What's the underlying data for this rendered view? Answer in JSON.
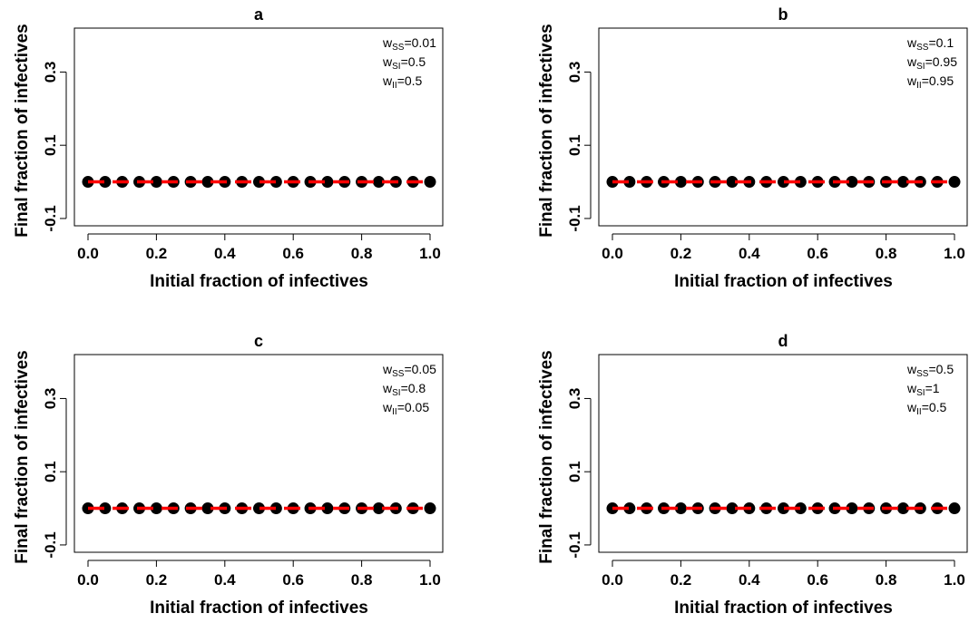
{
  "colors": {
    "points": "#000000",
    "line": "#ff0000",
    "axes": "#000000"
  },
  "chart_data": [
    {
      "type": "scatter",
      "title": "a",
      "xlabel": "Initial fraction of infectives",
      "ylabel": "Final fraction of infectives",
      "xlim": [
        0.0,
        1.0
      ],
      "ylim": [
        -0.12,
        0.42
      ],
      "xticks": [
        "0.0",
        "0.2",
        "0.4",
        "0.6",
        "0.8",
        "1.0"
      ],
      "yticks": [
        "-0.1",
        "0.1",
        "0.3"
      ],
      "legend_position": "top-right",
      "params": [
        {
          "w": "w",
          "sub": "SS",
          "value": "=0.01"
        },
        {
          "w": "w",
          "sub": "SI",
          "value": "=0.5"
        },
        {
          "w": "w",
          "sub": "II",
          "value": "=0.5"
        }
      ],
      "series": [
        {
          "type": "points",
          "x": [
            0.0,
            0.05,
            0.1,
            0.15,
            0.2,
            0.25,
            0.3,
            0.35,
            0.4,
            0.45,
            0.5,
            0.55,
            0.6,
            0.65,
            0.7,
            0.75,
            0.8,
            0.85,
            0.9,
            0.95,
            1.0
          ],
          "y": [
            0,
            0,
            0,
            0,
            0,
            0,
            0,
            0,
            0,
            0,
            0,
            0,
            0,
            0,
            0,
            0,
            0,
            0,
            0,
            0,
            0
          ]
        },
        {
          "type": "line",
          "x": [
            0.0,
            1.0
          ],
          "y": [
            0,
            0
          ]
        }
      ]
    },
    {
      "type": "scatter",
      "title": "b",
      "xlabel": "Initial fraction of infectives",
      "ylabel": "Final fraction of infectives",
      "xlim": [
        0.0,
        1.0
      ],
      "ylim": [
        -0.12,
        0.42
      ],
      "xticks": [
        "0.0",
        "0.2",
        "0.4",
        "0.6",
        "0.8",
        "1.0"
      ],
      "yticks": [
        "-0.1",
        "0.1",
        "0.3"
      ],
      "legend_position": "top-right",
      "params": [
        {
          "w": "w",
          "sub": "SS",
          "value": "=0.1"
        },
        {
          "w": "w",
          "sub": "SI",
          "value": "=0.95"
        },
        {
          "w": "w",
          "sub": "II",
          "value": "=0.95"
        }
      ],
      "series": [
        {
          "type": "points",
          "x": [
            0.0,
            0.05,
            0.1,
            0.15,
            0.2,
            0.25,
            0.3,
            0.35,
            0.4,
            0.45,
            0.5,
            0.55,
            0.6,
            0.65,
            0.7,
            0.75,
            0.8,
            0.85,
            0.9,
            0.95,
            1.0
          ],
          "y": [
            0,
            0,
            0,
            0,
            0,
            0,
            0,
            0,
            0,
            0,
            0,
            0,
            0,
            0,
            0,
            0,
            0,
            0,
            0,
            0,
            0
          ]
        },
        {
          "type": "line",
          "x": [
            0.0,
            1.0
          ],
          "y": [
            0,
            0
          ]
        }
      ]
    },
    {
      "type": "scatter",
      "title": "c",
      "xlabel": "Initial fraction of infectives",
      "ylabel": "Final fraction of infectives",
      "xlim": [
        0.0,
        1.0
      ],
      "ylim": [
        -0.12,
        0.42
      ],
      "xticks": [
        "0.0",
        "0.2",
        "0.4",
        "0.6",
        "0.8",
        "1.0"
      ],
      "yticks": [
        "-0.1",
        "0.1",
        "0.3"
      ],
      "legend_position": "top-right",
      "params": [
        {
          "w": "w",
          "sub": "SS",
          "value": "=0.05"
        },
        {
          "w": "w",
          "sub": "SI",
          "value": "=0.8"
        },
        {
          "w": "w",
          "sub": "II",
          "value": "=0.05"
        }
      ],
      "series": [
        {
          "type": "points",
          "x": [
            0.0,
            0.05,
            0.1,
            0.15,
            0.2,
            0.25,
            0.3,
            0.35,
            0.4,
            0.45,
            0.5,
            0.55,
            0.6,
            0.65,
            0.7,
            0.75,
            0.8,
            0.85,
            0.9,
            0.95,
            1.0
          ],
          "y": [
            0,
            0,
            0,
            0,
            0,
            0,
            0,
            0,
            0,
            0,
            0,
            0,
            0,
            0,
            0,
            0,
            0,
            0,
            0,
            0,
            0
          ]
        },
        {
          "type": "line",
          "x": [
            0.0,
            1.0
          ],
          "y": [
            0,
            0
          ]
        }
      ]
    },
    {
      "type": "scatter",
      "title": "d",
      "xlabel": "Initial fraction of infectives",
      "ylabel": "Final fraction of infectives",
      "xlim": [
        0.0,
        1.0
      ],
      "ylim": [
        -0.12,
        0.42
      ],
      "xticks": [
        "0.0",
        "0.2",
        "0.4",
        "0.6",
        "0.8",
        "1.0"
      ],
      "yticks": [
        "-0.1",
        "0.1",
        "0.3"
      ],
      "legend_position": "top-right",
      "params": [
        {
          "w": "w",
          "sub": "SS",
          "value": "=0.5"
        },
        {
          "w": "w",
          "sub": "SI",
          "value": "=1"
        },
        {
          "w": "w",
          "sub": "II",
          "value": "=0.5"
        }
      ],
      "series": [
        {
          "type": "points",
          "x": [
            0.0,
            0.05,
            0.1,
            0.15,
            0.2,
            0.25,
            0.3,
            0.35,
            0.4,
            0.45,
            0.5,
            0.55,
            0.6,
            0.65,
            0.7,
            0.75,
            0.8,
            0.85,
            0.9,
            0.95,
            1.0
          ],
          "y": [
            0,
            0,
            0,
            0,
            0,
            0,
            0,
            0,
            0,
            0,
            0,
            0,
            0,
            0,
            0,
            0,
            0,
            0,
            0,
            0,
            0
          ]
        },
        {
          "type": "line",
          "x": [
            0.0,
            1.0
          ],
          "y": [
            0,
            0
          ]
        }
      ]
    }
  ]
}
